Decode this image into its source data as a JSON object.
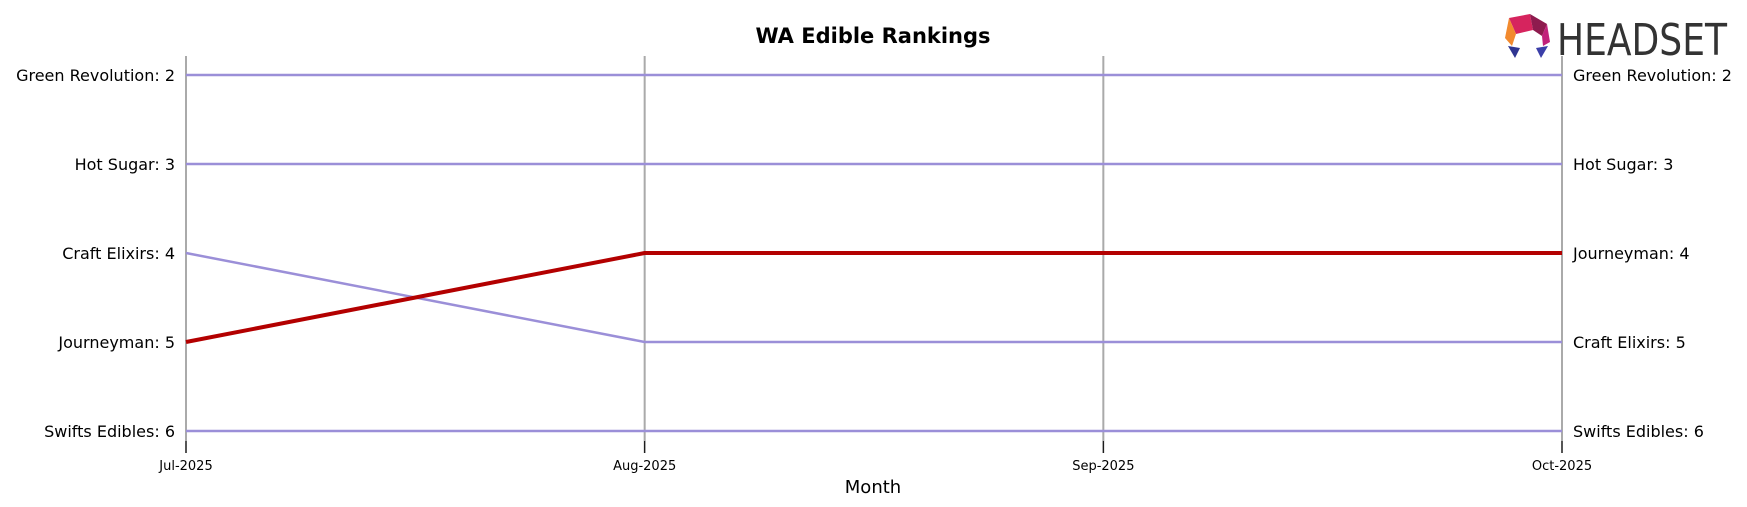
{
  "chart_data": {
    "type": "line",
    "title": "WA Edible Rankings",
    "xlabel": "Month",
    "ylabel": "",
    "x": [
      "Jul-2025",
      "Aug-2025",
      "Sep-2025",
      "Oct-2025"
    ],
    "y_inverted": true,
    "ylim": [
      2,
      6
    ],
    "grid": "vertical",
    "highlight": "Journeyman",
    "colors": {
      "default_line": "#9b8fd8",
      "highlight_line": "#b30000",
      "highlight_text": "#c00000",
      "grid": "#aaaaaa"
    },
    "series": [
      {
        "name": "Green Revolution",
        "values": [
          2,
          2,
          2,
          2
        ],
        "start_label": "Green Revolution: 2",
        "end_label": "Green Revolution: 2"
      },
      {
        "name": "Hot Sugar",
        "values": [
          3,
          3,
          3,
          3
        ],
        "start_label": "Hot Sugar: 3",
        "end_label": "Hot Sugar: 3"
      },
      {
        "name": "Craft Elixirs",
        "values": [
          4,
          5,
          5,
          5
        ],
        "start_label": "Craft Elixirs: 4",
        "end_label": "Craft Elixirs: 5"
      },
      {
        "name": "Journeyman",
        "values": [
          5,
          4,
          4,
          4
        ],
        "start_label": "Journeyman: 5",
        "end_label": "Journeyman: 4"
      },
      {
        "name": "Swifts Edibles",
        "values": [
          6,
          6,
          6,
          6
        ],
        "start_label": "Swifts Edibles: 6",
        "end_label": "Swifts Edibles: 6"
      }
    ]
  },
  "logo": {
    "text": "HEADSET",
    "icon": "headset-logo-icon"
  }
}
